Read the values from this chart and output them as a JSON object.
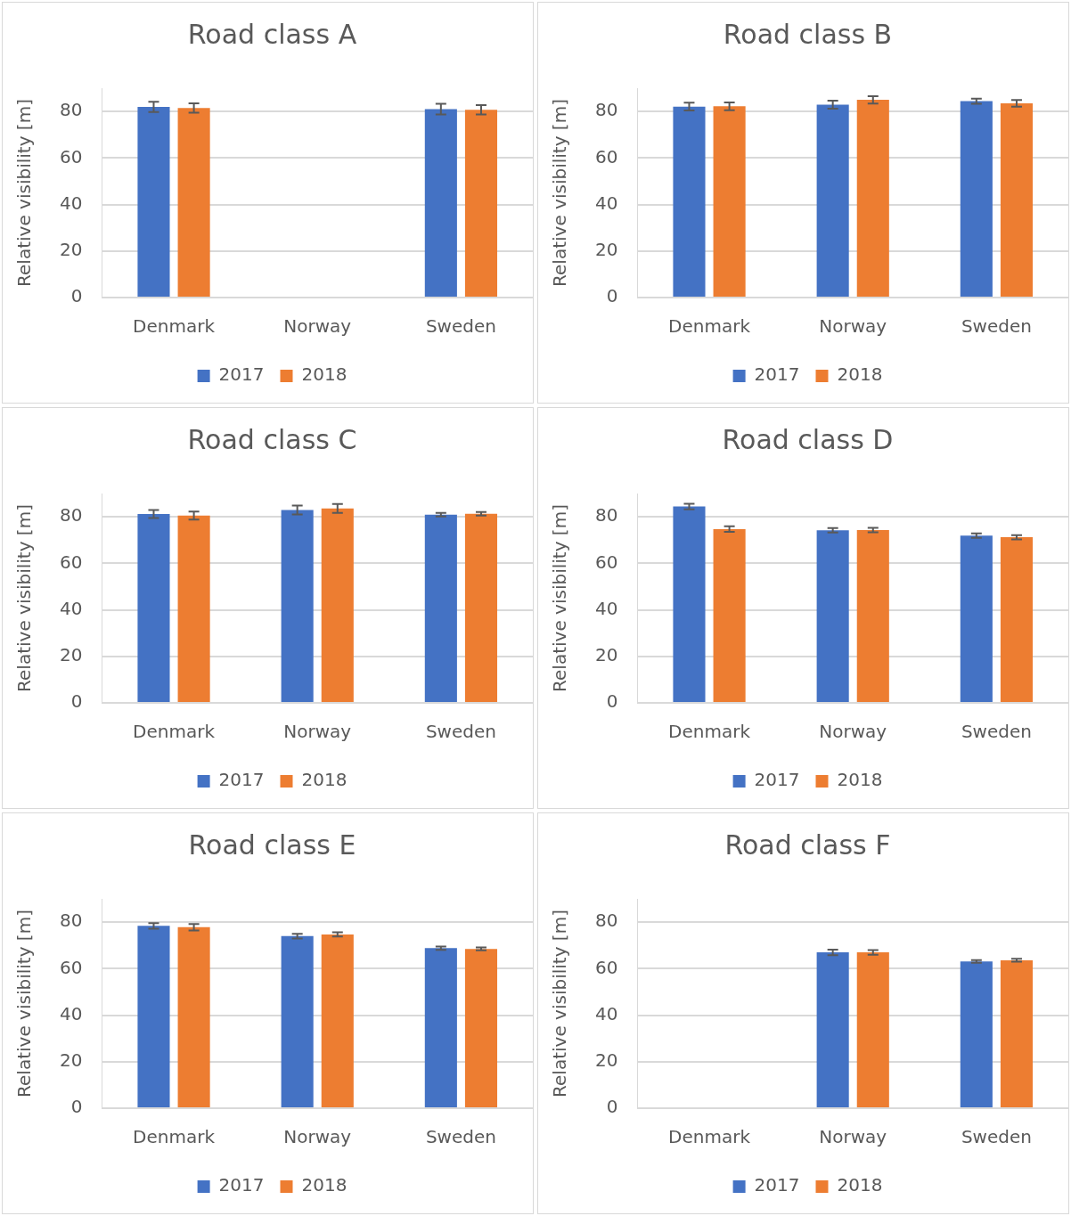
{
  "chart_data": [
    {
      "type": "bar",
      "title": "Road class A",
      "ylabel": "Relative visibility [m]",
      "categories": [
        "Denmark",
        "Norway",
        "Sweden"
      ],
      "series": [
        {
          "name": "2017",
          "color": "#4472c4",
          "values": [
            82,
            null,
            81
          ],
          "errors": [
            2.2,
            null,
            2.3
          ]
        },
        {
          "name": "2018",
          "color": "#ed7d31",
          "values": [
            81.5,
            null,
            80.7
          ],
          "errors": [
            2,
            null,
            2
          ]
        }
      ],
      "ylim": [
        0,
        90
      ],
      "yticks": [
        0,
        20,
        40,
        60,
        80
      ],
      "grid": "y",
      "legend": "bottom"
    },
    {
      "type": "bar",
      "title": "Road class B",
      "ylabel": "Relative visibility [m]",
      "categories": [
        "Denmark",
        "Norway",
        "Sweden"
      ],
      "series": [
        {
          "name": "2017",
          "color": "#4472c4",
          "values": [
            82.1,
            82.9,
            84.4
          ],
          "errors": [
            1.7,
            1.7,
            1.1
          ]
        },
        {
          "name": "2018",
          "color": "#ed7d31",
          "values": [
            82.2,
            85,
            83.5
          ],
          "errors": [
            1.7,
            1.6,
            1.4
          ]
        }
      ],
      "ylim": [
        0,
        90
      ],
      "yticks": [
        0,
        20,
        40,
        60,
        80
      ],
      "grid": "y",
      "legend": "bottom"
    },
    {
      "type": "bar",
      "title": "Road class C",
      "ylabel": "Relative visibility [m]",
      "categories": [
        "Denmark",
        "Norway",
        "Sweden"
      ],
      "series": [
        {
          "name": "2017",
          "color": "#4472c4",
          "values": [
            81.2,
            82.9,
            80.9
          ],
          "errors": [
            1.7,
            1.9,
            0.8
          ]
        },
        {
          "name": "2018",
          "color": "#ed7d31",
          "values": [
            80.5,
            83.6,
            81.3
          ],
          "errors": [
            1.7,
            1.9,
            0.8
          ]
        }
      ],
      "ylim": [
        0,
        90
      ],
      "yticks": [
        0,
        20,
        40,
        60,
        80
      ],
      "grid": "y",
      "legend": "bottom"
    },
    {
      "type": "bar",
      "title": "Road class D",
      "ylabel": "Relative visibility [m]",
      "categories": [
        "Denmark",
        "Norway",
        "Sweden"
      ],
      "series": [
        {
          "name": "2017",
          "color": "#4472c4",
          "values": [
            84.4,
            74.2,
            71.9
          ],
          "errors": [
            1.2,
            1,
            1
          ]
        },
        {
          "name": "2018",
          "color": "#ed7d31",
          "values": [
            74.7,
            74.3,
            71.2
          ],
          "errors": [
            1.2,
            1,
            0.9
          ]
        }
      ],
      "ylim": [
        0,
        90
      ],
      "yticks": [
        0,
        20,
        40,
        60,
        80
      ],
      "grid": "y",
      "legend": "bottom"
    },
    {
      "type": "bar",
      "title": "Road class E",
      "ylabel": "Relative visibility [m]",
      "categories": [
        "Denmark",
        "Norway",
        "Sweden"
      ],
      "series": [
        {
          "name": "2017",
          "color": "#4472c4",
          "values": [
            78.4,
            74,
            68.8
          ],
          "errors": [
            1.2,
            1,
            0.7
          ]
        },
        {
          "name": "2018",
          "color": "#ed7d31",
          "values": [
            77.8,
            74.7,
            68.5
          ],
          "errors": [
            1.4,
            0.9,
            0.6
          ]
        }
      ],
      "ylim": [
        0,
        90
      ],
      "yticks": [
        0,
        20,
        40,
        60,
        80
      ],
      "grid": "y",
      "legend": "bottom"
    },
    {
      "type": "bar",
      "title": "Road class F",
      "ylabel": "Relative visibility [m]",
      "categories": [
        "Denmark",
        "Norway",
        "Sweden"
      ],
      "series": [
        {
          "name": "2017",
          "color": "#4472c4",
          "values": [
            null,
            67,
            63.1
          ],
          "errors": [
            null,
            1.2,
            0.6
          ]
        },
        {
          "name": "2018",
          "color": "#ed7d31",
          "values": [
            null,
            67,
            63.6
          ],
          "errors": [
            null,
            1,
            0.6
          ]
        }
      ],
      "ylim": [
        0,
        90
      ],
      "yticks": [
        0,
        20,
        40,
        60,
        80
      ],
      "grid": "y",
      "legend": "bottom"
    }
  ]
}
